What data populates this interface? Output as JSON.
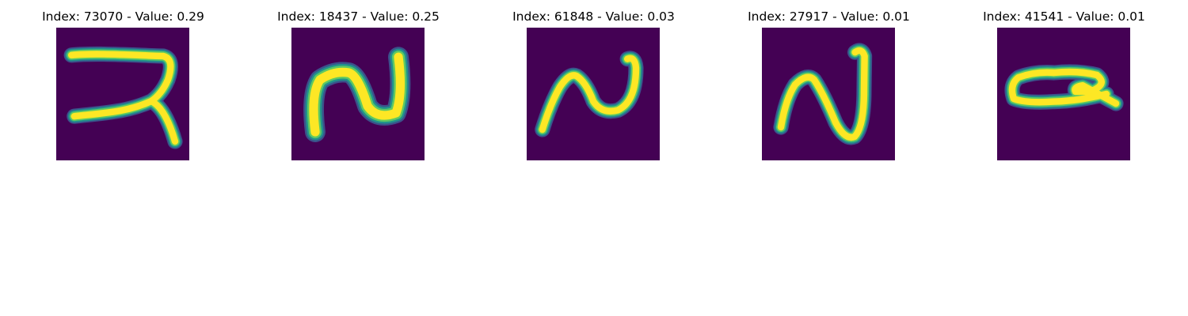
{
  "figure": {
    "background": "#ffffff",
    "colormap": {
      "background": "#440154",
      "edge_outer": "#3b528b",
      "edge_mid": "#21918c",
      "edge_inner": "#5ec962",
      "core": "#fde725"
    },
    "panels": [
      {
        "title": "Index: 73070 - Value: 0.29",
        "index": 73070,
        "value": 0.29,
        "glyph": "digit-like-shape"
      },
      {
        "title": "Index: 18437 - Value: 0.25",
        "index": 18437,
        "value": 0.25,
        "glyph": "n-shape"
      },
      {
        "title": "Index: 61848 - Value: 0.03",
        "index": 61848,
        "value": 0.03,
        "glyph": "tilde-shape"
      },
      {
        "title": "Index: 27917 - Value: 0.01",
        "index": 27917,
        "value": 0.01,
        "glyph": "n-shape-tall"
      },
      {
        "title": "Index: 41541 - Value: 0.01",
        "index": 41541,
        "value": 0.01,
        "glyph": "loop-shape"
      }
    ]
  }
}
